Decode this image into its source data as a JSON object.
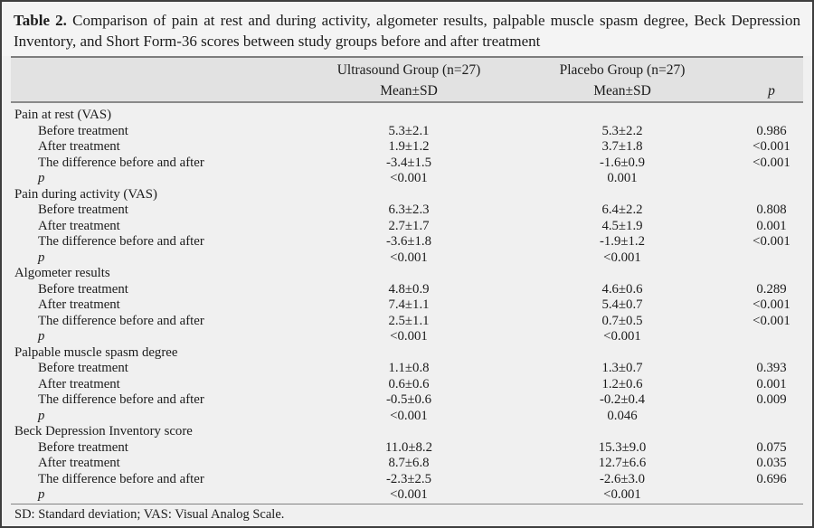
{
  "title": {
    "label": "Table 2.",
    "text": "Comparison of pain at rest and during activity, algometer results, palpable muscle spasm degree, Beck Depression Inventory, and Short Form-36 scores between study groups before and after treatment"
  },
  "header": {
    "group1": "Ultrasound Group (n=27)",
    "group2": "Placebo Group (n=27)",
    "subheader1": "Mean±SD",
    "subheader2": "Mean±SD",
    "p_label": "p"
  },
  "sections": [
    {
      "label": "Pain at rest (VAS)",
      "rows": [
        {
          "label": "Before treatment",
          "ultrasound": "5.3±2.1",
          "placebo": "5.3±2.2",
          "p": "0.986"
        },
        {
          "label": "After treatment",
          "ultrasound": "1.9±1.2",
          "placebo": "3.7±1.8",
          "p": "<0.001"
        },
        {
          "label": "The difference before and after",
          "ultrasound": "-3.4±1.5",
          "placebo": "-1.6±0.9",
          "p": "<0.001"
        },
        {
          "label": "p",
          "ultrasound": "<0.001",
          "placebo": "0.001",
          "p": ""
        }
      ]
    },
    {
      "label": "Pain during activity (VAS)",
      "rows": [
        {
          "label": "Before treatment",
          "ultrasound": "6.3±2.3",
          "placebo": "6.4±2.2",
          "p": "0.808"
        },
        {
          "label": "After treatment",
          "ultrasound": "2.7±1.7",
          "placebo": "4.5±1.9",
          "p": "0.001"
        },
        {
          "label": "The difference before and after",
          "ultrasound": "-3.6±1.8",
          "placebo": "-1.9±1.2",
          "p": "<0.001"
        },
        {
          "label": "p",
          "ultrasound": "<0.001",
          "placebo": "<0.001",
          "p": ""
        }
      ]
    },
    {
      "label": "Algometer results",
      "rows": [
        {
          "label": "Before treatment",
          "ultrasound": "4.8±0.9",
          "placebo": "4.6±0.6",
          "p": "0.289"
        },
        {
          "label": "After treatment",
          "ultrasound": "7.4±1.1",
          "placebo": "5.4±0.7",
          "p": "<0.001"
        },
        {
          "label": "The difference before and after",
          "ultrasound": "2.5±1.1",
          "placebo": "0.7±0.5",
          "p": "<0.001"
        },
        {
          "label": "p",
          "ultrasound": "<0.001",
          "placebo": "<0.001",
          "p": ""
        }
      ]
    },
    {
      "label": "Palpable muscle spasm degree",
      "rows": [
        {
          "label": "Before treatment",
          "ultrasound": "1.1±0.8",
          "placebo": "1.3±0.7",
          "p": "0.393"
        },
        {
          "label": "After treatment",
          "ultrasound": "0.6±0.6",
          "placebo": "1.2±0.6",
          "p": "0.001"
        },
        {
          "label": "The difference before and after",
          "ultrasound": "-0.5±0.6",
          "placebo": "-0.2±0.4",
          "p": "0.009"
        },
        {
          "label": "p",
          "ultrasound": "<0.001",
          "placebo": "0.046",
          "p": ""
        }
      ]
    },
    {
      "label": "Beck Depression Inventory score",
      "rows": [
        {
          "label": "Before treatment",
          "ultrasound": "11.0±8.2",
          "placebo": "15.3±9.0",
          "p": "0.075"
        },
        {
          "label": "After treatment",
          "ultrasound": "8.7±6.8",
          "placebo": "12.7±6.6",
          "p": "0.035"
        },
        {
          "label": "The difference before and after",
          "ultrasound": "-2.3±2.5",
          "placebo": "-2.6±3.0",
          "p": "0.696"
        },
        {
          "label": "p",
          "ultrasound": "<0.001",
          "placebo": "<0.001",
          "p": ""
        }
      ]
    }
  ],
  "footnote": "SD: Standard deviation; VAS: Visual Analog Scale.",
  "colors": {
    "outer_border": "#3e3e3e",
    "title_bg": "#f4f4f4",
    "header_band_bg": "#e2e2e2",
    "body_bg": "#f0f0f0",
    "rule": "#828282",
    "text": "#1b1b1b"
  }
}
